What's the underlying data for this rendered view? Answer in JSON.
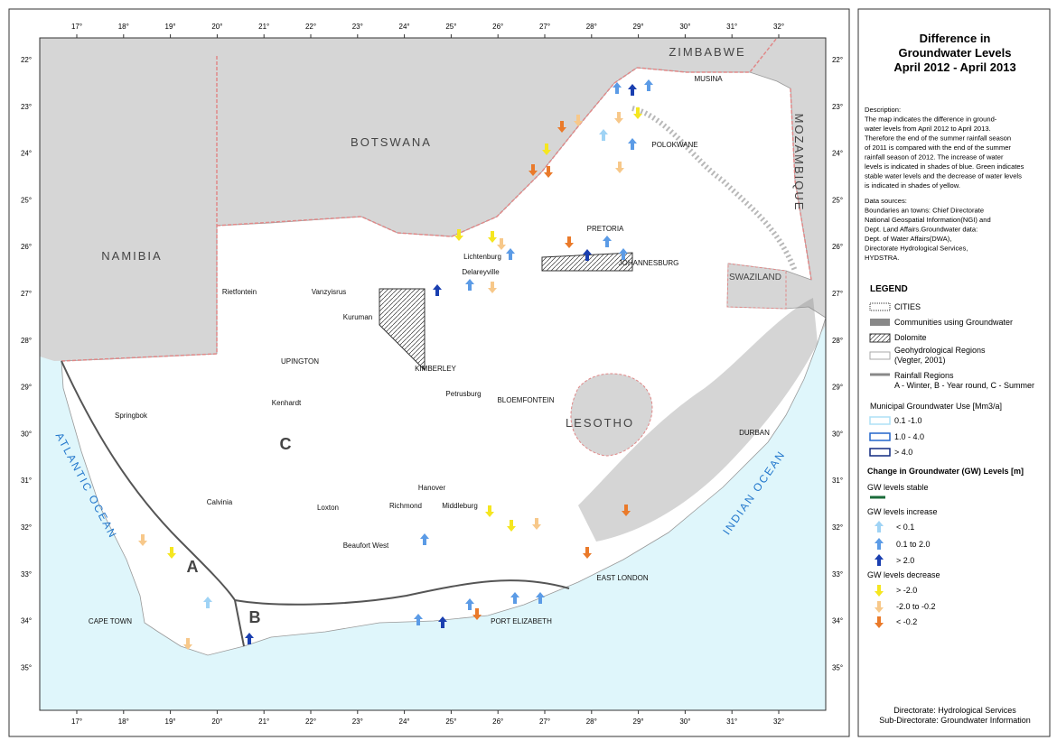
{
  "title": [
    "Difference in",
    "Groundwater Levels",
    "April 2012 - April 2013"
  ],
  "description": [
    "Description:",
    "The map indicates the difference in ground-",
    "water levels from April 2012 to April 2013.",
    "Therefore the end of the summer rainfall season",
    "of 2011 is compared with the end of the summer",
    "rainfall season of 2012. The increase of water",
    "levels is indicated in shades of blue. Green indicates",
    "stable water levels and the decrease of water levels",
    "is indicated in shades of yellow."
  ],
  "data_sources": [
    "Data sources:",
    "Boundaries an towns: Chief Directorate",
    "National Geospatial Information(NGI) and",
    "Dept. Land Affairs.Groundwater data:",
    "Dept. of Water Affairs(DWA),",
    "Directorate Hydrological Services,",
    "HYDSTRA."
  ],
  "legend": {
    "title": "LEGEND",
    "cities": "CITIES",
    "communities": "Communities using Groundwater",
    "dolomite": "Dolomite",
    "geohydro": [
      "Geohydrological Regions",
      "(Vegter, 2001)"
    ],
    "rainfall": [
      "Rainfall Regions",
      "A - Winter, B - Year round, C - Summer"
    ],
    "municipal": {
      "title": "Municipal Groundwater Use [Mm3/a]",
      "items": [
        "0.1 -1.0",
        "1.0 - 4.0",
        "> 4.0"
      ]
    },
    "change": {
      "title": "Change in Groundwater (GW) Levels [m]",
      "stable": "GW levels stable",
      "increase": {
        "title": "GW levels increase",
        "items": [
          "< 0.1",
          "0.1 to 2.0",
          "> 2.0"
        ]
      },
      "decrease": {
        "title": "GW levels decrease",
        "items": [
          "> -2.0",
          "-2.0 to -0.2",
          "< -0.2"
        ]
      }
    }
  },
  "footer": [
    "Directorate: Hydrological Services",
    "Sub-Directorate: Groundwater Information"
  ],
  "map": {
    "lon_labels": [
      "17°",
      "18°",
      "19°",
      "20°",
      "21°",
      "22°",
      "23°",
      "24°",
      "25°",
      "26°",
      "27°",
      "28°",
      "29°",
      "30°",
      "31°",
      "32°"
    ],
    "lat_labels": [
      "22°",
      "23°",
      "24°",
      "25°",
      "26°",
      "27°",
      "28°",
      "29°",
      "30°",
      "31°",
      "32°",
      "33°",
      "34°",
      "35°"
    ],
    "countries": [
      "ZIMBABWE",
      "BOTSWANA",
      "NAMIBIA",
      "MOZAMBIQUE",
      "SWAZILAND",
      "LESOTHO"
    ],
    "oceans": [
      "ATLANTIC OCEAN",
      "INDIAN OCEAN"
    ],
    "places": [
      "MUSINA",
      "POLOKWANE",
      "PRETORIA",
      "JOHANNESBURG",
      "Lichtenburg",
      "Delareyville",
      "Rietfontein",
      "Vanzyisrus",
      "Kuruman",
      "UPINGTON",
      "KIMBERLEY",
      "Petrusburg",
      "BLOEMFONTEIN",
      "Kenhardt",
      "Springbok",
      "DURBAN",
      "Calvinia",
      "Hanover",
      "Loxton",
      "Richmond",
      "Middleburg",
      "Beaufort West",
      "EAST LONDON",
      "CAPE TOWN",
      "PORT ELIZABETH"
    ],
    "regions": [
      "A",
      "B",
      "C"
    ]
  }
}
